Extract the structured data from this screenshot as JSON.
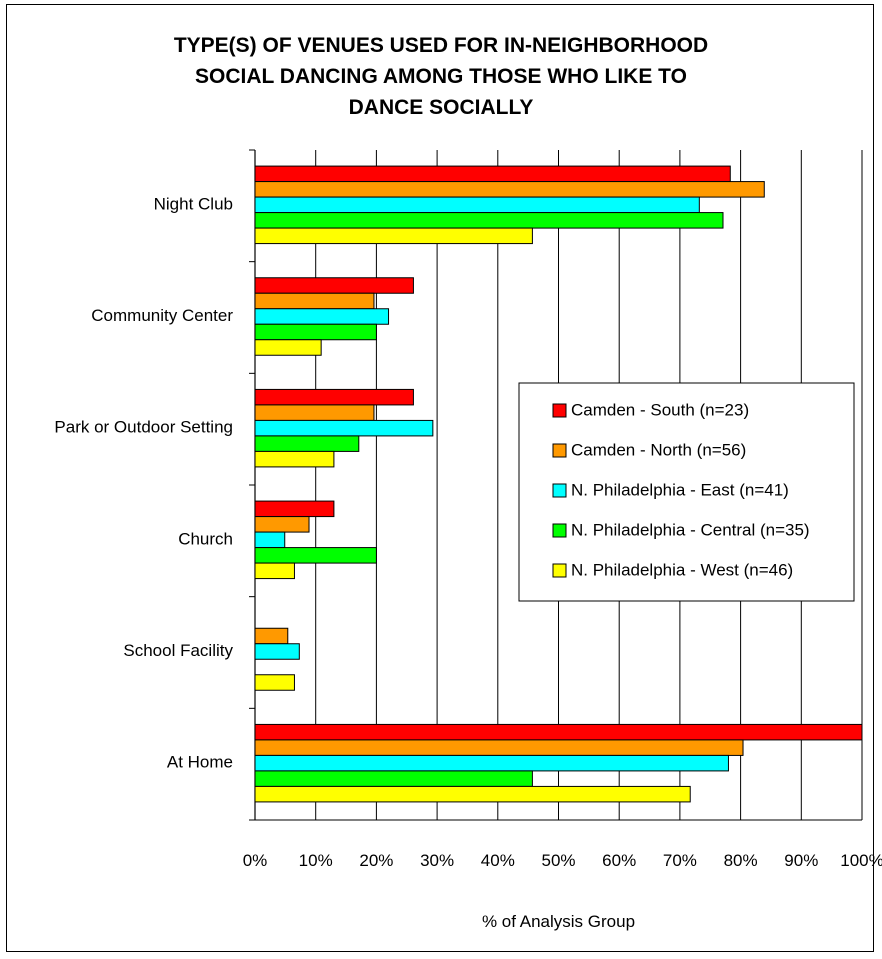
{
  "chart_data": {
    "type": "bar",
    "orientation": "horizontal",
    "title": "TYPE(S) OF VENUES USED FOR IN-NEIGHBORHOOD SOCIAL DANCING AMONG THOSE WHO LIKE TO DANCE SOCIALLY",
    "title_lines": [
      "TYPE(S) OF VENUES USED FOR IN-NEIGHBORHOOD",
      "SOCIAL DANCING AMONG THOSE WHO LIKE TO",
      "DANCE SOCIALLY"
    ],
    "xlabel": "% of Analysis Group",
    "ylabel": "",
    "xlim": [
      0,
      100
    ],
    "x_ticks": [
      "0%",
      "10%",
      "20%",
      "30%",
      "40%",
      "50%",
      "60%",
      "70%",
      "80%",
      "90%",
      "100%"
    ],
    "grid": true,
    "legend_position": "right",
    "categories": [
      "Night Club",
      "Community Center",
      "Park or Outdoor Setting",
      "Church",
      "School Facility",
      "At Home"
    ],
    "series": [
      {
        "name": "Camden - South (n=23)",
        "color": "#ff0000",
        "values": [
          78.3,
          26.1,
          26.1,
          13.0,
          0,
          100
        ]
      },
      {
        "name": "Camden - North (n=56)",
        "color": "#ff9900",
        "values": [
          83.9,
          19.6,
          19.6,
          8.9,
          5.4,
          80.4
        ]
      },
      {
        "name": "N. Philadelphia - East (n=41)",
        "color": "#00ffff",
        "values": [
          73.2,
          22.0,
          29.3,
          4.9,
          7.3,
          78.0
        ]
      },
      {
        "name": "N. Philadelphia - Central (n=35)",
        "color": "#00ff00",
        "values": [
          77.1,
          20.0,
          17.1,
          20.0,
          0,
          45.7
        ]
      },
      {
        "name": "N. Philadelphia - West (n=46)",
        "color": "#ffff00",
        "values": [
          45.7,
          10.9,
          13.0,
          6.5,
          6.5,
          71.7
        ]
      }
    ]
  }
}
